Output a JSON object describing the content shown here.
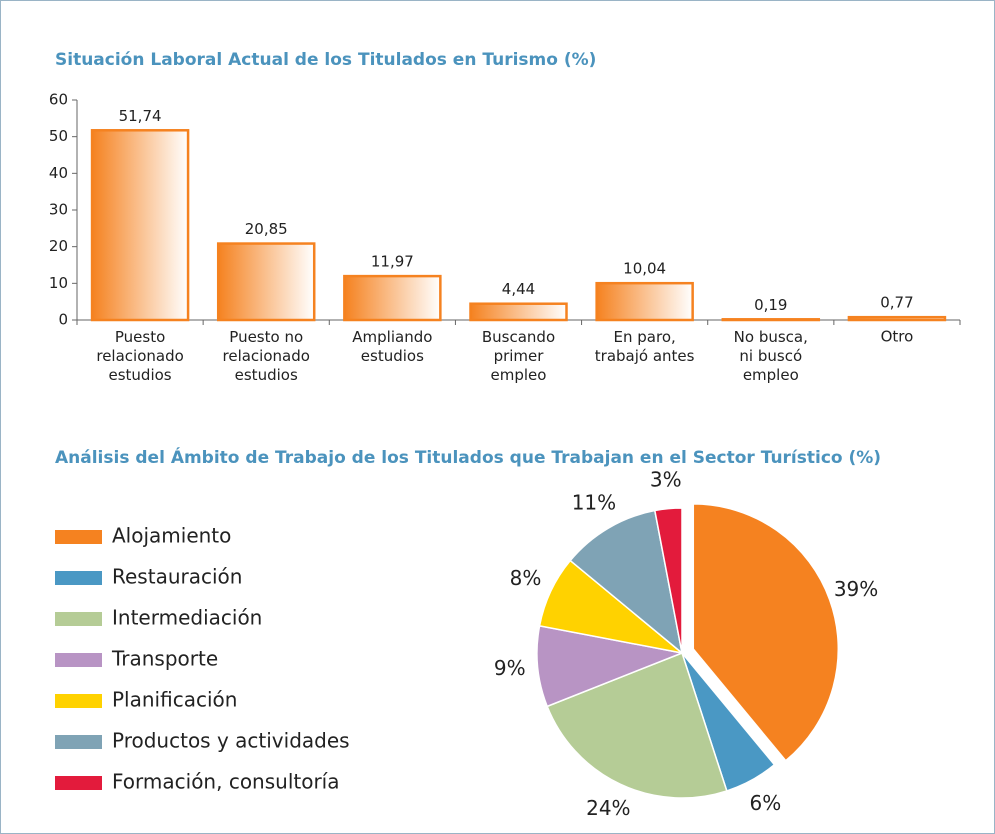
{
  "chart_data": [
    {
      "type": "bar",
      "title": "Situación Laboral Actual de los Titulados en Turismo (%)",
      "categories": [
        "Puesto\nrelacionado\nestudios",
        "Puesto no\nrelacionado\nestudios",
        "Ampliando\nestudios",
        "Buscando\nprimer\nempleo",
        "En paro,\ntrabajó antes",
        "No busca,\nni buscó\nempleo",
        "Otro"
      ],
      "values": [
        51.74,
        20.85,
        11.97,
        4.44,
        10.04,
        0.19,
        0.77
      ],
      "value_labels": [
        "51,74",
        "20,85",
        "11,97",
        "4,44",
        "10,04",
        "0,19",
        "0,77"
      ],
      "color": "#f58220",
      "ylim": [
        0,
        60
      ],
      "yticks": [
        0,
        10,
        20,
        30,
        40,
        50,
        60
      ]
    },
    {
      "type": "pie",
      "title": "Análisis del Ámbito de Trabajo de los Titulados que Trabajan en el Sector Turístico (%)",
      "categories": [
        "Alojamiento",
        "Restauración",
        "Intermediación",
        "Transporte",
        "Planificación",
        "Productos y actividades",
        "Formación, consultoría"
      ],
      "values": [
        39,
        6,
        24,
        9,
        8,
        11,
        3
      ],
      "value_labels": [
        "39%",
        "6%",
        "24%",
        "9%",
        "8%",
        "11%",
        "3%"
      ],
      "colors": [
        "#f58220",
        "#4a98c4",
        "#b5cc96",
        "#b894c4",
        "#ffd200",
        "#7fa3b5",
        "#e31b3c"
      ],
      "exploded": [
        0
      ]
    }
  ]
}
